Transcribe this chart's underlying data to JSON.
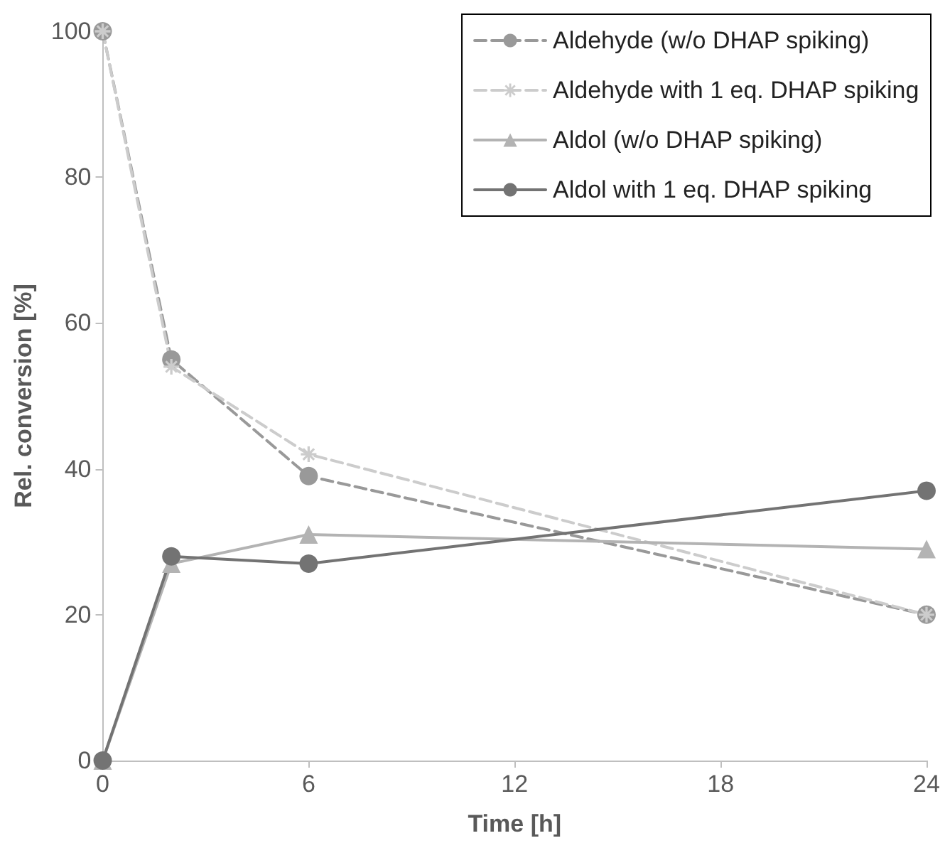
{
  "chart_data": {
    "type": "line",
    "xlabel": "Time [h]",
    "ylabel": "Rel. conversion [%]",
    "x": [
      0,
      2,
      6,
      24
    ],
    "series": [
      {
        "name": "Aldehyde (w/o DHAP spiking)",
        "color": "#999999",
        "values": [
          100,
          55,
          39,
          20
        ],
        "marker": "circle",
        "line_style": "dashed"
      },
      {
        "name": "Aldehyde with 1 eq. DHAP spiking",
        "color": "#cccccc",
        "values": [
          100,
          54,
          42,
          20
        ],
        "marker": "cross",
        "line_style": "dashed"
      },
      {
        "name": "Aldol (w/o DHAP spiking)",
        "color": "#b3b3b3",
        "values": [
          0,
          27,
          31,
          29
        ],
        "marker": "triangle",
        "line_style": "solid"
      },
      {
        "name": "Aldol with 1 eq. DHAP spiking",
        "color": "#737373",
        "values": [
          0,
          28,
          27,
          37
        ],
        "marker": "circle",
        "line_style": "solid"
      }
    ],
    "xlim": [
      0,
      24
    ],
    "xticks": [
      0,
      6,
      12,
      18,
      24
    ],
    "ylim": [
      0,
      100
    ],
    "yticks": [
      0,
      20,
      40,
      60,
      80,
      100
    ],
    "grid": false,
    "legend": "top right"
  }
}
